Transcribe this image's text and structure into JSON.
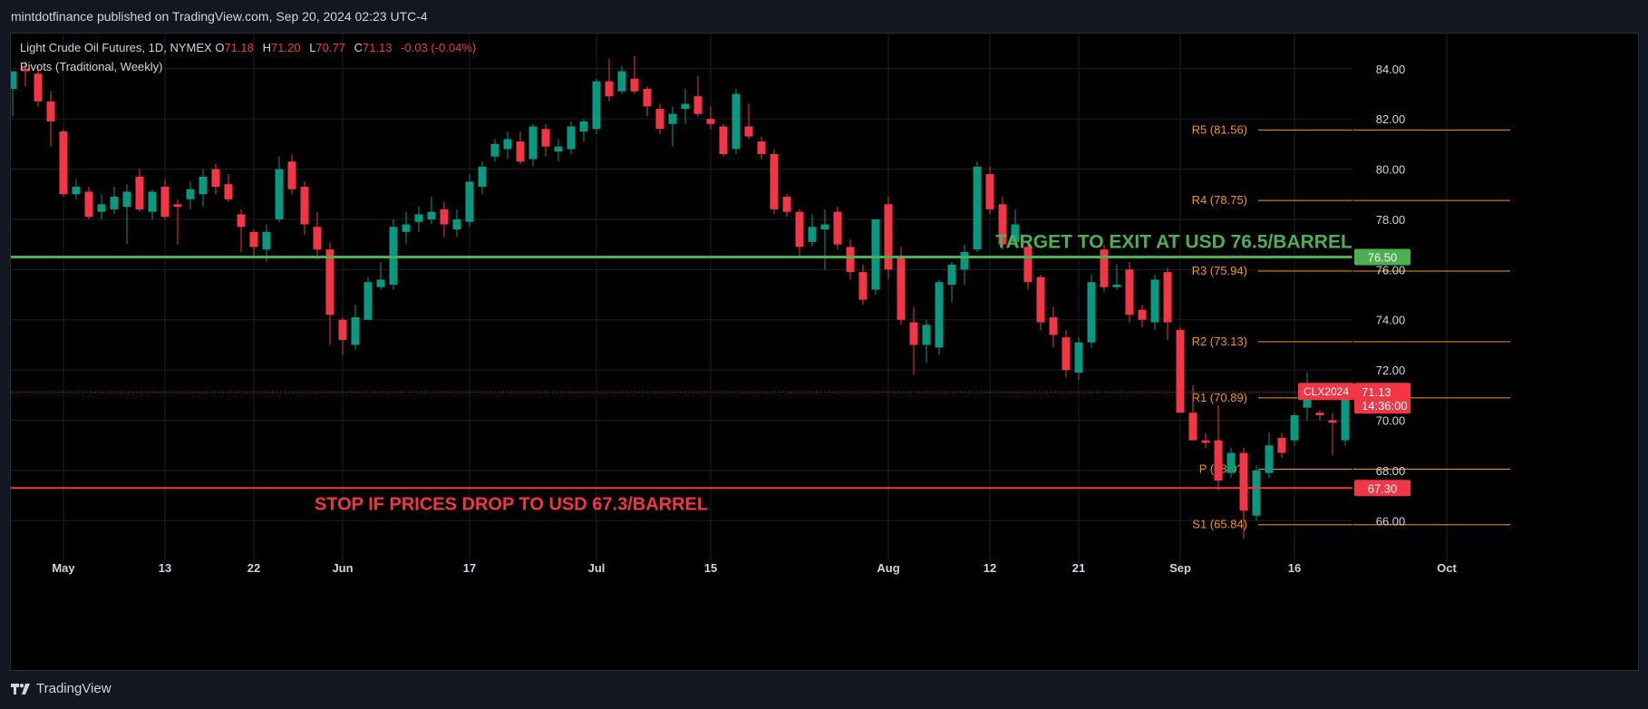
{
  "header": {
    "publisher_line": "mintdotfinance published on TradingView.com, Sep 20, 2024 02:23 UTC-4"
  },
  "legend": {
    "symbol_line": "Light Crude Oil Futures, 1D, NYMEX",
    "open_label": "O",
    "open_value": "71.18",
    "high_label": "H",
    "high_value": "71.20",
    "low_label": "L",
    "low_value": "70.77",
    "close_label": "C",
    "close_value": "71.13",
    "change_value": "-0.03 (-0.04%)",
    "indicator_line": "Pivots (Traditional, Weekly)"
  },
  "footer": {
    "brand": "TradingView"
  },
  "colors": {
    "up": "#089981",
    "down": "#f23645",
    "pivot": "#f7931a",
    "target": "#4caf50",
    "stop": "#f23645",
    "axis_text": "#d1d4dc"
  },
  "chart_data": {
    "type": "candlestick",
    "ylim": [
      65.0,
      85.4
    ],
    "y_ticks": [
      "66.00",
      "68.00",
      "70.00",
      "72.00",
      "74.00",
      "76.00",
      "78.00",
      "80.00",
      "82.00",
      "84.00"
    ],
    "x_ticks": [
      {
        "label": "May",
        "index": 4
      },
      {
        "label": "13",
        "index": 12
      },
      {
        "label": "22",
        "index": 19
      },
      {
        "label": "Jun",
        "index": 26
      },
      {
        "label": "17",
        "index": 36
      },
      {
        "label": "Jul",
        "index": 46
      },
      {
        "label": "15",
        "index": 55
      },
      {
        "label": "Aug",
        "index": 69
      },
      {
        "label": "12",
        "index": 77
      },
      {
        "label": "21",
        "index": 84
      },
      {
        "label": "Sep",
        "index": 92
      },
      {
        "label": "16",
        "index": 101
      },
      {
        "label": "Oct",
        "index": 113
      }
    ],
    "candles": [
      {
        "o": 83.2,
        "h": 83.9,
        "l": 82.1,
        "c": 83.9
      },
      {
        "o": 84.0,
        "h": 84.3,
        "l": 83.3,
        "c": 83.9
      },
      {
        "o": 83.8,
        "h": 84.1,
        "l": 82.5,
        "c": 82.7
      },
      {
        "o": 82.7,
        "h": 83.1,
        "l": 80.9,
        "c": 81.9
      },
      {
        "o": 81.5,
        "h": 81.6,
        "l": 78.9,
        "c": 79.0
      },
      {
        "o": 79.0,
        "h": 79.6,
        "l": 78.8,
        "c": 79.3
      },
      {
        "o": 79.1,
        "h": 79.3,
        "l": 78.0,
        "c": 78.1
      },
      {
        "o": 78.3,
        "h": 79.0,
        "l": 78.0,
        "c": 78.6
      },
      {
        "o": 78.4,
        "h": 79.3,
        "l": 78.2,
        "c": 78.9
      },
      {
        "o": 78.5,
        "h": 79.4,
        "l": 77.0,
        "c": 79.1
      },
      {
        "o": 79.7,
        "h": 80.0,
        "l": 78.3,
        "c": 78.4
      },
      {
        "o": 78.3,
        "h": 79.2,
        "l": 78.0,
        "c": 79.1
      },
      {
        "o": 79.3,
        "h": 79.6,
        "l": 78.0,
        "c": 78.1
      },
      {
        "o": 78.6,
        "h": 78.8,
        "l": 77.0,
        "c": 78.5
      },
      {
        "o": 78.8,
        "h": 79.5,
        "l": 78.4,
        "c": 79.2
      },
      {
        "o": 79.0,
        "h": 80.0,
        "l": 78.5,
        "c": 79.7
      },
      {
        "o": 80.0,
        "h": 80.2,
        "l": 79.0,
        "c": 79.3
      },
      {
        "o": 79.4,
        "h": 79.8,
        "l": 78.7,
        "c": 78.8
      },
      {
        "o": 78.2,
        "h": 78.4,
        "l": 76.7,
        "c": 77.7
      },
      {
        "o": 77.5,
        "h": 77.6,
        "l": 76.5,
        "c": 76.9
      },
      {
        "o": 76.8,
        "h": 77.8,
        "l": 76.3,
        "c": 77.5
      },
      {
        "o": 78.0,
        "h": 80.5,
        "l": 77.9,
        "c": 80.0
      },
      {
        "o": 80.3,
        "h": 80.6,
        "l": 79.0,
        "c": 79.2
      },
      {
        "o": 79.3,
        "h": 79.5,
        "l": 77.4,
        "c": 77.8
      },
      {
        "o": 77.7,
        "h": 78.3,
        "l": 76.4,
        "c": 76.8
      },
      {
        "o": 76.8,
        "h": 77.1,
        "l": 73.0,
        "c": 74.2
      },
      {
        "o": 74.0,
        "h": 74.1,
        "l": 72.6,
        "c": 73.2
      },
      {
        "o": 73.0,
        "h": 74.6,
        "l": 72.8,
        "c": 74.1
      },
      {
        "o": 74.0,
        "h": 75.7,
        "l": 74.0,
        "c": 75.5
      },
      {
        "o": 75.3,
        "h": 76.3,
        "l": 75.2,
        "c": 75.6
      },
      {
        "o": 75.4,
        "h": 78.0,
        "l": 75.2,
        "c": 77.7
      },
      {
        "o": 77.5,
        "h": 78.3,
        "l": 77.0,
        "c": 77.8
      },
      {
        "o": 77.9,
        "h": 78.5,
        "l": 77.5,
        "c": 78.2
      },
      {
        "o": 78.0,
        "h": 78.9,
        "l": 77.8,
        "c": 78.3
      },
      {
        "o": 78.4,
        "h": 78.7,
        "l": 77.3,
        "c": 77.8
      },
      {
        "o": 77.6,
        "h": 78.4,
        "l": 77.3,
        "c": 78.0
      },
      {
        "o": 77.9,
        "h": 79.8,
        "l": 77.7,
        "c": 79.5
      },
      {
        "o": 79.3,
        "h": 80.3,
        "l": 79.0,
        "c": 80.1
      },
      {
        "o": 80.5,
        "h": 81.2,
        "l": 80.3,
        "c": 81.0
      },
      {
        "o": 80.8,
        "h": 81.5,
        "l": 80.4,
        "c": 81.2
      },
      {
        "o": 81.1,
        "h": 81.5,
        "l": 80.2,
        "c": 80.3
      },
      {
        "o": 80.4,
        "h": 81.8,
        "l": 80.1,
        "c": 81.7
      },
      {
        "o": 81.6,
        "h": 81.8,
        "l": 80.5,
        "c": 80.9
      },
      {
        "o": 80.7,
        "h": 81.2,
        "l": 80.3,
        "c": 80.9
      },
      {
        "o": 80.8,
        "h": 81.9,
        "l": 80.6,
        "c": 81.7
      },
      {
        "o": 81.5,
        "h": 82.0,
        "l": 81.1,
        "c": 81.9
      },
      {
        "o": 81.6,
        "h": 83.6,
        "l": 81.4,
        "c": 83.5
      },
      {
        "o": 83.5,
        "h": 84.4,
        "l": 82.7,
        "c": 82.9
      },
      {
        "o": 83.1,
        "h": 84.1,
        "l": 83.0,
        "c": 83.9
      },
      {
        "o": 83.6,
        "h": 84.5,
        "l": 83.0,
        "c": 83.1
      },
      {
        "o": 83.2,
        "h": 83.3,
        "l": 82.1,
        "c": 82.5
      },
      {
        "o": 82.4,
        "h": 82.6,
        "l": 81.4,
        "c": 81.6
      },
      {
        "o": 81.8,
        "h": 82.5,
        "l": 80.9,
        "c": 82.2
      },
      {
        "o": 82.4,
        "h": 83.2,
        "l": 81.8,
        "c": 82.6
      },
      {
        "o": 82.9,
        "h": 83.7,
        "l": 82.1,
        "c": 82.2
      },
      {
        "o": 82.0,
        "h": 82.5,
        "l": 81.6,
        "c": 81.8
      },
      {
        "o": 81.7,
        "h": 81.8,
        "l": 80.5,
        "c": 80.6
      },
      {
        "o": 80.8,
        "h": 83.2,
        "l": 80.6,
        "c": 83.0
      },
      {
        "o": 81.7,
        "h": 82.6,
        "l": 81.2,
        "c": 81.3
      },
      {
        "o": 81.1,
        "h": 81.3,
        "l": 80.4,
        "c": 80.6
      },
      {
        "o": 80.6,
        "h": 80.8,
        "l": 78.2,
        "c": 78.4
      },
      {
        "o": 78.9,
        "h": 79.0,
        "l": 78.1,
        "c": 78.3
      },
      {
        "o": 78.3,
        "h": 78.4,
        "l": 76.5,
        "c": 76.9
      },
      {
        "o": 77.1,
        "h": 78.2,
        "l": 76.9,
        "c": 77.7
      },
      {
        "o": 77.6,
        "h": 78.4,
        "l": 76.0,
        "c": 77.8
      },
      {
        "o": 78.3,
        "h": 78.5,
        "l": 76.8,
        "c": 77.0
      },
      {
        "o": 76.9,
        "h": 77.2,
        "l": 75.6,
        "c": 75.9
      },
      {
        "o": 75.9,
        "h": 76.2,
        "l": 74.6,
        "c": 74.8
      },
      {
        "o": 75.2,
        "h": 78.0,
        "l": 75.0,
        "c": 78.0
      },
      {
        "o": 78.6,
        "h": 78.9,
        "l": 75.6,
        "c": 76.0
      },
      {
        "o": 76.5,
        "h": 76.9,
        "l": 73.8,
        "c": 74.0
      },
      {
        "o": 73.9,
        "h": 74.5,
        "l": 71.8,
        "c": 73.0
      },
      {
        "o": 73.0,
        "h": 74.0,
        "l": 72.3,
        "c": 73.8
      },
      {
        "o": 72.9,
        "h": 75.6,
        "l": 72.6,
        "c": 75.5
      },
      {
        "o": 75.4,
        "h": 76.3,
        "l": 74.7,
        "c": 76.2
      },
      {
        "o": 76.0,
        "h": 77.0,
        "l": 75.4,
        "c": 76.7
      },
      {
        "o": 76.8,
        "h": 80.3,
        "l": 76.7,
        "c": 80.1
      },
      {
        "o": 79.8,
        "h": 80.1,
        "l": 78.2,
        "c": 78.4
      },
      {
        "o": 78.6,
        "h": 78.9,
        "l": 76.8,
        "c": 77.0
      },
      {
        "o": 77.1,
        "h": 78.4,
        "l": 76.9,
        "c": 77.8
      },
      {
        "o": 76.9,
        "h": 77.1,
        "l": 75.2,
        "c": 75.5
      },
      {
        "o": 75.7,
        "h": 75.8,
        "l": 73.6,
        "c": 73.9
      },
      {
        "o": 74.1,
        "h": 74.5,
        "l": 72.9,
        "c": 73.4
      },
      {
        "o": 73.3,
        "h": 73.6,
        "l": 71.7,
        "c": 72.0
      },
      {
        "o": 71.9,
        "h": 73.3,
        "l": 71.6,
        "c": 73.1
      },
      {
        "o": 73.1,
        "h": 75.8,
        "l": 72.9,
        "c": 75.5
      },
      {
        "o": 76.8,
        "h": 77.0,
        "l": 75.1,
        "c": 75.3
      },
      {
        "o": 75.3,
        "h": 76.2,
        "l": 75.2,
        "c": 75.4
      },
      {
        "o": 76.0,
        "h": 76.3,
        "l": 73.9,
        "c": 74.2
      },
      {
        "o": 74.4,
        "h": 74.6,
        "l": 73.7,
        "c": 74.0
      },
      {
        "o": 73.9,
        "h": 75.8,
        "l": 73.6,
        "c": 75.6
      },
      {
        "o": 75.9,
        "h": 76.1,
        "l": 73.2,
        "c": 73.9
      },
      {
        "o": 73.6,
        "h": 73.7,
        "l": 70.4,
        "c": 70.3
      },
      {
        "o": 70.3,
        "h": 71.4,
        "l": 69.4,
        "c": 69.2
      },
      {
        "o": 69.2,
        "h": 69.5,
        "l": 68.9,
        "c": 69.1
      },
      {
        "o": 69.2,
        "h": 70.6,
        "l": 67.2,
        "c": 67.6
      },
      {
        "o": 67.9,
        "h": 68.9,
        "l": 67.7,
        "c": 68.7
      },
      {
        "o": 68.7,
        "h": 68.9,
        "l": 65.3,
        "c": 66.4
      },
      {
        "o": 66.2,
        "h": 68.2,
        "l": 66.0,
        "c": 68.0
      },
      {
        "o": 67.9,
        "h": 69.5,
        "l": 67.7,
        "c": 69.0
      },
      {
        "o": 69.3,
        "h": 69.5,
        "l": 68.5,
        "c": 68.7
      },
      {
        "o": 69.2,
        "h": 70.3,
        "l": 69.0,
        "c": 70.2
      },
      {
        "o": 70.5,
        "h": 71.9,
        "l": 70.0,
        "c": 71.2
      },
      {
        "o": 70.3,
        "h": 70.4,
        "l": 70.0,
        "c": 70.2
      },
      {
        "o": 70.0,
        "h": 70.3,
        "l": 68.6,
        "c": 69.9
      },
      {
        "o": 69.2,
        "h": 71.5,
        "l": 69.0,
        "c": 71.2
      },
      {
        "o": 71.18,
        "h": 71.2,
        "l": 70.77,
        "c": 71.13
      }
    ],
    "pivots": [
      {
        "label": "R5 (81.56)",
        "value": 81.56
      },
      {
        "label": "R4 (78.75)",
        "value": 78.75
      },
      {
        "label": "R3 (75.94)",
        "value": 75.94
      },
      {
        "label": "R2 (73.13)",
        "value": 73.13
      },
      {
        "label": "R1 (70.89)",
        "value": 70.89
      },
      {
        "label": "P (68.0?)",
        "value": 68.05
      },
      {
        "label": "S1 (65.84)",
        "value": 65.84
      }
    ],
    "target_line": {
      "value": 76.5,
      "axis_label": "76.50",
      "annotation": "TARGET TO EXIT AT USD 76.5/BARREL"
    },
    "stop_line": {
      "value": 67.3,
      "axis_label": "67.30",
      "annotation": "STOP IF PRICES DROP TO USD 67.3/BARREL"
    },
    "last_price": {
      "value": 71.13,
      "symbol_label": "CLX2024",
      "price_label": "71.13",
      "countdown": "14:36:00"
    }
  }
}
